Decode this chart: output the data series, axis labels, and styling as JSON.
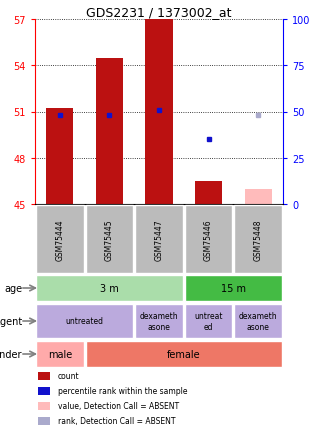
{
  "title": "GDS2231 / 1373002_at",
  "samples": [
    "GSM75444",
    "GSM75445",
    "GSM75447",
    "GSM75446",
    "GSM75448"
  ],
  "ylim": [
    45,
    57
  ],
  "yticks_left": [
    45,
    48,
    51,
    54,
    57
  ],
  "yticks_right": [
    0,
    25,
    50,
    75,
    100
  ],
  "bar_values": [
    51.2,
    54.5,
    57.0,
    46.5,
    null
  ],
  "bar_color": "#bb1111",
  "absent_bar_values": [
    null,
    null,
    null,
    null,
    46.0
  ],
  "absent_bar_color": "#ffbbbb",
  "blue_dot_values": [
    50.8,
    50.8,
    51.1,
    49.2,
    null
  ],
  "blue_dot_color": "#1111cc",
  "absent_blue_dot_values": [
    null,
    null,
    null,
    null,
    50.8
  ],
  "absent_blue_dot_color": "#aaaacc",
  "age_groups": [
    {
      "label": "3 m",
      "start": 0,
      "end": 3,
      "color": "#aaddaa"
    },
    {
      "label": "15 m",
      "start": 3,
      "end": 5,
      "color": "#44bb44"
    }
  ],
  "agent_groups": [
    {
      "label": "untreated",
      "start": 0,
      "end": 2,
      "color": "#bbaadd"
    },
    {
      "label": "dexameth\nasone",
      "start": 2,
      "end": 3,
      "color": "#bbaadd"
    },
    {
      "label": "untreat\ned",
      "start": 3,
      "end": 4,
      "color": "#bbaadd"
    },
    {
      "label": "dexameth\nasone",
      "start": 4,
      "end": 5,
      "color": "#bbaadd"
    }
  ],
  "gender_groups": [
    {
      "label": "male",
      "start": 0,
      "end": 1,
      "color": "#ffaaaa"
    },
    {
      "label": "female",
      "start": 1,
      "end": 5,
      "color": "#ee7766"
    }
  ],
  "row_labels": [
    "age",
    "agent",
    "gender"
  ],
  "legend_items": [
    {
      "color": "#bb1111",
      "label": "count"
    },
    {
      "color": "#1111cc",
      "label": "percentile rank within the sample"
    },
    {
      "color": "#ffbbbb",
      "label": "value, Detection Call = ABSENT"
    },
    {
      "color": "#aaaacc",
      "label": "rank, Detection Call = ABSENT"
    }
  ],
  "bar_width": 0.55,
  "sample_bg_color": "#bbbbbb",
  "title_fontsize": 9,
  "tick_fontsize": 7
}
